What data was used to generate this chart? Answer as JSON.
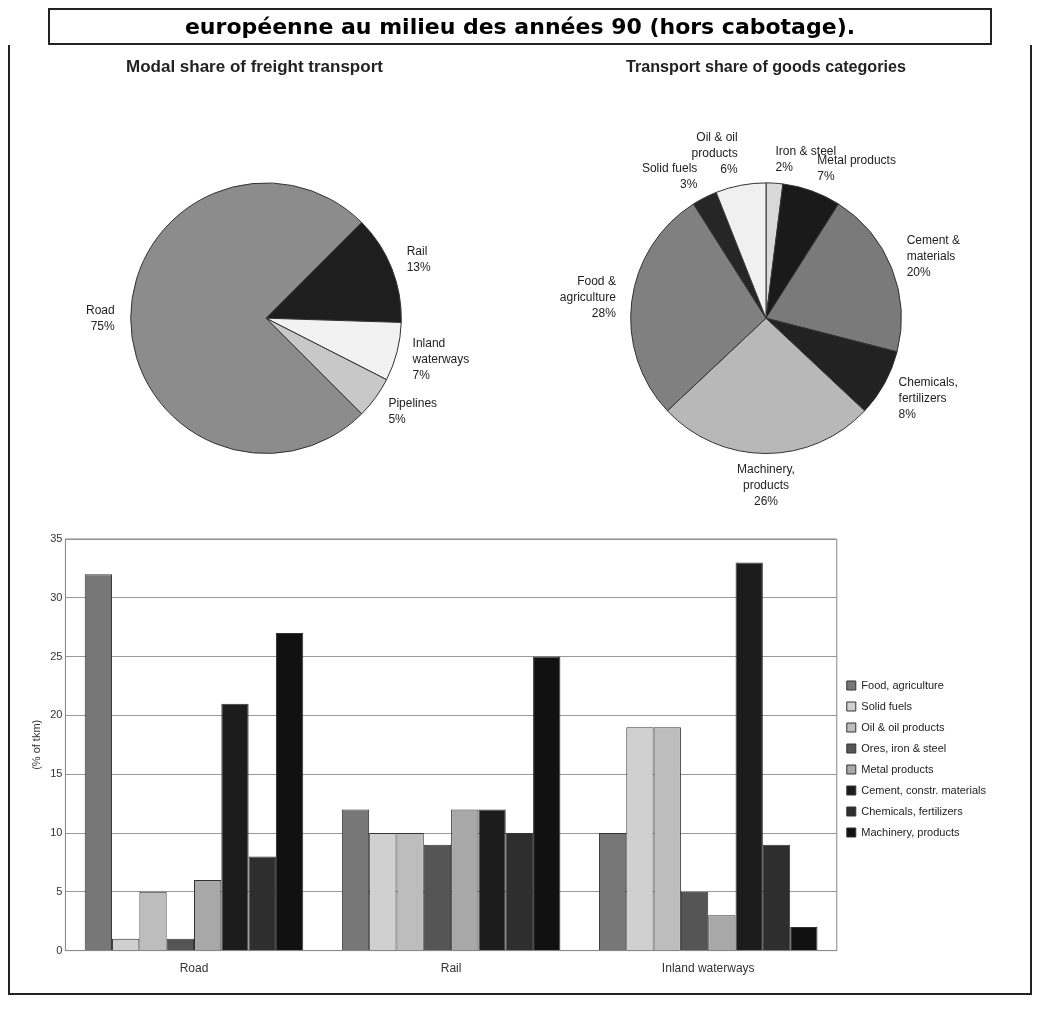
{
  "chart_data": [
    {
      "type": "pie",
      "title": "Modal share of freight transport",
      "annotations": [
        "européenne au milieu des années 90 (hors cabotage)."
      ],
      "categories": [
        "Rail",
        "Inland waterways",
        "Pipelines",
        "Road"
      ],
      "values": [
        13,
        7,
        5,
        75
      ],
      "value_labels": [
        "13%",
        "7%",
        "5%",
        "75%"
      ],
      "colors": [
        "#1e1e1e",
        "#f2f2f2",
        "#c8c8c8",
        "#8c8c8c"
      ]
    },
    {
      "type": "pie",
      "title": "Transport share of goods categories",
      "categories": [
        "Iron & steel",
        "Metal products",
        "Cement & materials",
        "Chemicals, fertilizers",
        "Machinery, products",
        "Food & agriculture",
        "Solid fuels",
        "Oil & oil products"
      ],
      "values": [
        2,
        7,
        20,
        8,
        26,
        28,
        3,
        6
      ],
      "value_labels": [
        "2%",
        "7%",
        "20%",
        "8%",
        "26%",
        "28%",
        "3%",
        "6%"
      ],
      "colors": [
        "#d8d8d8",
        "#1a1a1a",
        "#7a7a7a",
        "#222222",
        "#b8b8b8",
        "#808080",
        "#262626",
        "#f0f0f0"
      ]
    },
    {
      "type": "bar",
      "ylabel": "(% of tkm)",
      "categories": [
        "Road",
        "Rail",
        "Inland waterways"
      ],
      "ylim": [
        0,
        35
      ],
      "yticks": [
        0,
        5,
        10,
        15,
        20,
        25,
        30,
        35
      ],
      "grid": "y",
      "legend": "right",
      "series": [
        {
          "name": "Food, agriculture",
          "color": "#777777",
          "values": [
            32,
            12,
            10
          ]
        },
        {
          "name": "Solid fuels",
          "color": "#d0d0d0",
          "values": [
            1,
            10,
            19
          ]
        },
        {
          "name": "Oil & oil products",
          "color": "#bdbdbd",
          "values": [
            5,
            10,
            19
          ]
        },
        {
          "name": "Ores, iron & steel",
          "color": "#555555",
          "values": [
            1,
            9,
            5
          ]
        },
        {
          "name": "Metal products",
          "color": "#a8a8a8",
          "values": [
            6,
            12,
            3
          ]
        },
        {
          "name": "Cement, constr. materials",
          "color": "#1c1c1c",
          "values": [
            21,
            12,
            33
          ]
        },
        {
          "name": "Chemicals, fertilizers",
          "color": "#2e2e2e",
          "values": [
            8,
            10,
            9
          ]
        },
        {
          "name": "Machinery, products",
          "color": "#111111",
          "values": [
            27,
            25,
            2
          ]
        }
      ]
    }
  ]
}
